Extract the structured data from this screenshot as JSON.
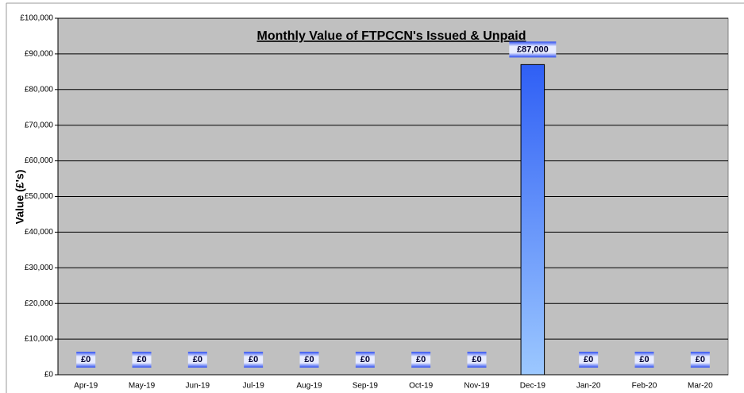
{
  "chart_data": {
    "type": "bar",
    "title": "Monthly Value of FTPCCN's Issued & Unpaid",
    "y_label": "Value (£'s)",
    "categories": [
      "Apr-19",
      "May-19",
      "Jun-19",
      "Jul-19",
      "Aug-19",
      "Sep-19",
      "Oct-19",
      "Nov-19",
      "Dec-19",
      "Jan-20",
      "Feb-20",
      "Mar-20"
    ],
    "values": [
      0,
      0,
      0,
      0,
      0,
      0,
      0,
      0,
      87000,
      0,
      0,
      0
    ],
    "value_labels": [
      "£0",
      "£0",
      "£0",
      "£0",
      "£0",
      "£0",
      "£0",
      "£0",
      "£87,000",
      "£0",
      "£0",
      "£0"
    ],
    "color": "#3366ff",
    "ylim": [
      0,
      100000
    ],
    "yticks": [
      {
        "value": 0,
        "label": "£0"
      },
      {
        "value": 10000,
        "label": "£10,000"
      },
      {
        "value": 20000,
        "label": "£20,000"
      },
      {
        "value": 30000,
        "label": "£30,000"
      },
      {
        "value": 40000,
        "label": "£40,000"
      },
      {
        "value": 50000,
        "label": "£50,000"
      },
      {
        "value": 60000,
        "label": "£60,000"
      },
      {
        "value": 70000,
        "label": "£70,000"
      },
      {
        "value": 80000,
        "label": "£80,000"
      },
      {
        "value": 90000,
        "label": "£90,000"
      },
      {
        "value": 100000,
        "label": "£100,000"
      }
    ],
    "grid": true
  }
}
